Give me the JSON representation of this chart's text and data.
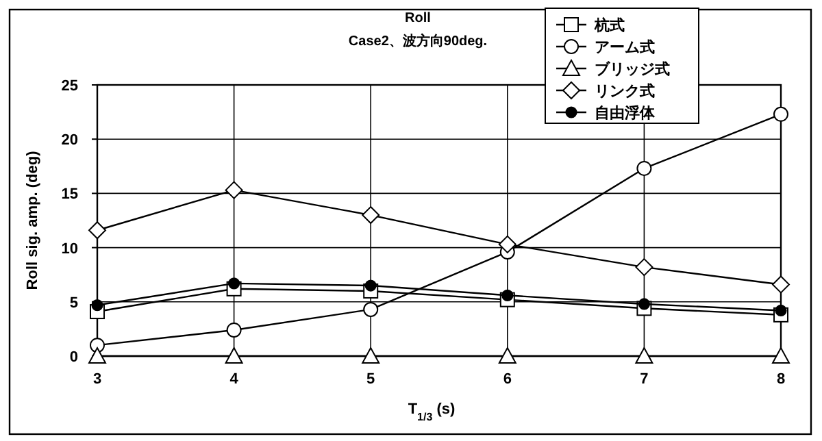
{
  "chart_data": {
    "type": "line",
    "title": "Roll",
    "subtitle": "Case2、波方向90deg.",
    "xlabel": "T$_{1/3}$ (s)",
    "ylabel": "Roll sig. amp. (deg)",
    "x": [
      3,
      4,
      5,
      6,
      7,
      8
    ],
    "series": [
      {
        "name": "杭式",
        "color": "#000000",
        "marker": "square",
        "values": [
          4.1,
          6.2,
          6.0,
          5.2,
          4.4,
          3.8
        ]
      },
      {
        "name": "アーム式",
        "color": "#000000",
        "marker": "circle",
        "values": [
          1.0,
          2.4,
          4.3,
          9.6,
          17.3,
          22.3
        ]
      },
      {
        "name": "ブリッジ式",
        "color": "#000000",
        "marker": "triangle",
        "values": [
          0,
          0,
          0,
          0,
          0,
          0
        ]
      },
      {
        "name": "リンク式",
        "color": "#000000",
        "marker": "diamond",
        "values": [
          11.6,
          15.3,
          13.0,
          10.3,
          8.2,
          6.6
        ]
      },
      {
        "name": "自由浮体",
        "color": "#000000",
        "marker": "circle",
        "values": [
          4.7,
          6.7,
          6.5,
          5.6,
          4.8,
          4.2
        ]
      }
    ],
    "xlim": [
      3,
      8
    ],
    "ylim": [
      0,
      25
    ],
    "xticks": [
      3,
      4,
      5,
      6,
      7,
      8
    ],
    "yticks": [
      0,
      5,
      10,
      15,
      20,
      25
    ],
    "grid": true,
    "legend": "top right",
    "line_style": "solid"
  }
}
